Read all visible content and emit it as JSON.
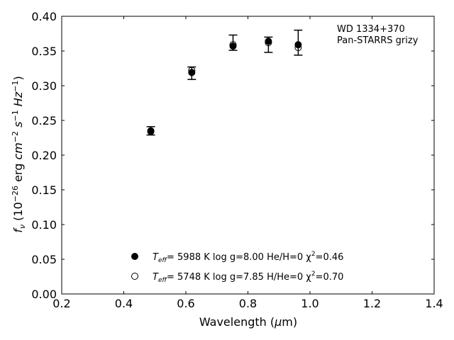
{
  "chart_data": {
    "type": "scatter",
    "xlabel": "Wavelength (μm)",
    "ylabel": "f_ν (10^-26 erg cm^-2 s^-1 Hz^-1)",
    "xlim": [
      0.2,
      1.4
    ],
    "ylim": [
      0.0,
      0.4
    ],
    "x_ticks": [
      "0.2",
      "0.4",
      "0.6",
      "0.8",
      "1.0",
      "1.2",
      "1.4"
    ],
    "y_ticks": [
      "0.00",
      "0.05",
      "0.10",
      "0.15",
      "0.20",
      "0.25",
      "0.30",
      "0.35",
      "0.40"
    ],
    "grid": false,
    "annotation": [
      "WD 1334+370",
      "Pan-STARRS grizy"
    ],
    "observed": {
      "x": [
        0.487,
        0.619,
        0.752,
        0.866,
        0.962
      ],
      "y": [
        0.235,
        0.318,
        0.362,
        0.359,
        0.362
      ],
      "err": [
        0.006,
        0.009,
        0.011,
        0.011,
        0.018
      ]
    },
    "series": [
      {
        "marker": "filled",
        "legend_parts": {
          "t": "T",
          "sub": "eff",
          "rest": "=  5988 K  log g=8.00  He/H=0  χ",
          "sup": "2",
          "end": "=0.46"
        },
        "x": [
          0.487,
          0.619,
          0.752,
          0.866,
          0.962
        ],
        "y": [
          0.235,
          0.319,
          0.357,
          0.364,
          0.359
        ]
      },
      {
        "marker": "open",
        "legend_parts": {
          "t": "T",
          "sub": "eff",
          "rest": "=  5748 K  log g=7.85  H/He=0  χ",
          "sup": "2",
          "end": "=0.70"
        },
        "x": [
          0.487,
          0.619,
          0.752,
          0.866,
          0.962
        ],
        "y": [
          0.234,
          0.322,
          0.359,
          0.362,
          0.355
        ]
      }
    ]
  }
}
